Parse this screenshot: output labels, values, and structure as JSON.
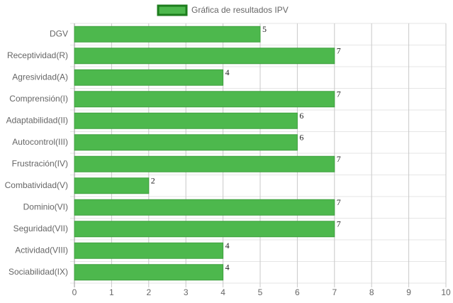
{
  "chart_data": {
    "type": "bar",
    "orientation": "horizontal",
    "categories": [
      "DGV",
      "Receptividad(R)",
      "Agresividad(A)",
      "Comprensión(I)",
      "Adaptabilidad(II)",
      "Autocontrol(III)",
      "Frustración(IV)",
      "Combatividad(V)",
      "Dominio(VI)",
      "Seguridad(VII)",
      "Actividad(VIII)",
      "Sociabilidad(IX)"
    ],
    "series": [
      {
        "name": "Gráfica de resultados IPV",
        "color": "#4db84d",
        "values": [
          5,
          7,
          4,
          7,
          6,
          6,
          7,
          2,
          7,
          7,
          4,
          4
        ]
      }
    ],
    "xlim": [
      0,
      10
    ],
    "xticks": [
      0,
      1,
      2,
      3,
      4,
      5,
      6,
      7,
      8,
      9,
      10
    ],
    "grid": true,
    "legend": "top"
  }
}
